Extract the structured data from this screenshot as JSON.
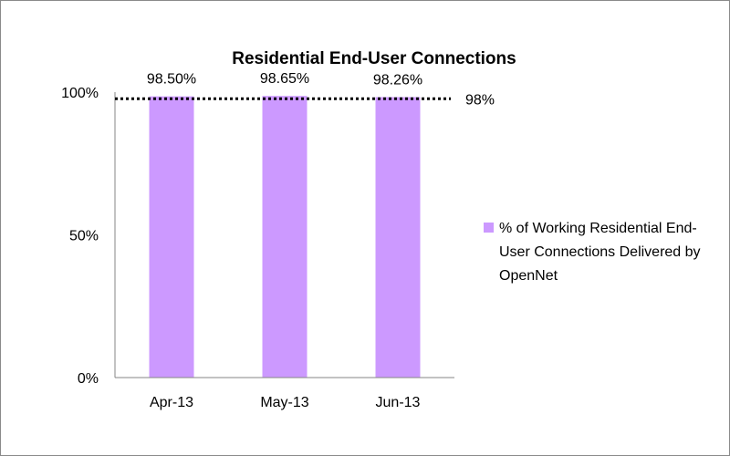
{
  "chart_data": {
    "type": "bar",
    "title": "Residential End-User Connections",
    "categories": [
      "Apr-13",
      "May-13",
      "Jun-13"
    ],
    "series": [
      {
        "name": "% of Working Residential End-User Connections Delivered by OpenNet",
        "values": [
          98.5,
          98.65,
          98.26
        ],
        "labels": [
          "98.50%",
          "98.65%",
          "98.26%"
        ],
        "color": "#cc99ff"
      }
    ],
    "reference_line": {
      "value": 98,
      "label": "98%",
      "style": "dotted",
      "color": "#000000"
    },
    "yticks": [
      {
        "value": 0,
        "label": "0%"
      },
      {
        "value": 50,
        "label": "50%"
      },
      {
        "value": 100,
        "label": "100%"
      }
    ],
    "ylim": [
      0,
      100
    ],
    "xlabel": "",
    "ylabel": "",
    "grid": false,
    "legend_position": "right"
  }
}
